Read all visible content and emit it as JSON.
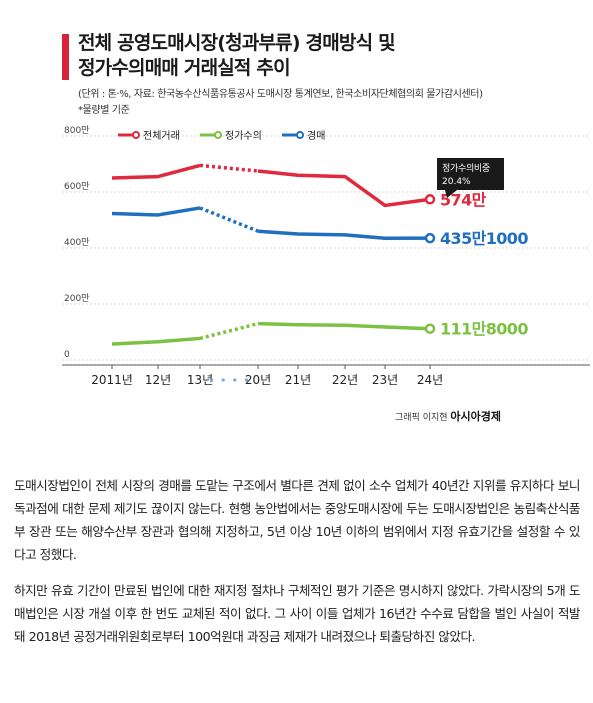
{
  "figure": {
    "title_line1": "전체 공영도매시장(청과부류) 경매방식 및",
    "title_line2": "정가수의매매 거래실적 추이",
    "source": "(단위 : 톤·%, 자료: 한국농수산식품유통공사 도매시장 통계연보, 한국소비자단체협의회 물가감시센터)",
    "basis": "*물량별 기준",
    "credit_prefix": "그래픽 이지현",
    "credit_brand": "아시아경제",
    "callout_label": "정가수의비중",
    "callout_value": "20.4%",
    "colors": {
      "total": "#e0283f",
      "fixed": "#7cc142",
      "auction": "#1f6fc0",
      "grid": "#d9d9d9",
      "axis": "#555555",
      "callout_bg": "#1a1a1a"
    }
  },
  "chart_data": {
    "type": "line",
    "title": "전체 공영도매시장(청과부류) 경매방식 및 정가수의매매 거래실적 추이",
    "categories": [
      "2011년",
      "12년",
      "13년",
      "20년",
      "21년",
      "22년",
      "23년",
      "24년"
    ],
    "y_tick_labels": [
      "800만",
      "600만",
      "400만",
      "200만",
      "0"
    ],
    "y_ticks": [
      800,
      600,
      400,
      200,
      0
    ],
    "ylim": [
      0,
      800
    ],
    "y_unit": "만 톤",
    "grid": true,
    "legend": "top-left",
    "break_between": [
      "13년",
      "20년"
    ],
    "series": [
      {
        "name": "전체거래",
        "key": "total",
        "values": [
          650,
          655,
          695,
          675,
          660,
          655,
          552,
          574
        ],
        "end_label": "574만"
      },
      {
        "name": "정가수의",
        "key": "fixed",
        "values": [
          57,
          65,
          77,
          130,
          126,
          124,
          118,
          111.8
        ],
        "end_label": "111만8000"
      },
      {
        "name": "경매",
        "key": "auction",
        "values": [
          523,
          518,
          543,
          460,
          450,
          447,
          435,
          435.1
        ],
        "end_label": "435만1000"
      }
    ]
  },
  "article": {
    "paragraphs": [
      "도매시장법인이 전체 시장의 경매를 도맡는 구조에서 별다른 견제 없이 소수 업체가 40년간 지위를 유지하다 보니 독과점에 대한 문제 제기도 끊이지 않는다. 현행 농안법에서는 중앙도매시장에 두는 도매시장법인은 농림축산식품부 장관 또는 해양수산부 장관과 협의해 지정하고, 5년 이상 10년 이하의 범위에서 지정 유효기간을 설정할 수 있다고 정했다.",
      "하지만 유효 기간이 만료된 법인에 대한 재지정 절차나 구체적인 평가 기준은 명시하지 않았다. 가락시장의 5개 도매법인은 시장 개설 이후 한 번도 교체된 적이 없다. 그 사이 이들 업체가 16년간 수수료 담합을 벌인 사실이 적발돼 2018년 공정거래위원회로부터 100억원대 과징금 제재가 내려졌으나 퇴출당하진 않았다."
    ]
  }
}
